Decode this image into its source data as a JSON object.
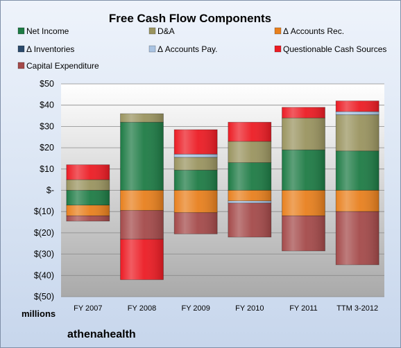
{
  "chart_data": {
    "type": "bar",
    "stacked": true,
    "title": "Free Cash Flow Components",
    "unit_label": "millions",
    "brand": "athenahealth",
    "categories": [
      "FY 2007",
      "FY 2008",
      "FY 2009",
      "FY 2010",
      "FY 2011",
      "TTM 3-2012"
    ],
    "ylim": [
      -50,
      50
    ],
    "yticks": [
      50,
      40,
      30,
      20,
      10,
      0,
      -10,
      -20,
      -30,
      -40,
      -50
    ],
    "ytick_labels": [
      "$50",
      "$40",
      "$30",
      "$20",
      "$10",
      "$-",
      "$(10)",
      "$(20)",
      "$(30)",
      "$(40)",
      "$(50)"
    ],
    "grid": true,
    "legend_position": "top",
    "series": [
      {
        "name": "Net Income",
        "color": "#1e7b45",
        "values": [
          -7,
          32,
          9.5,
          13,
          19,
          18.5
        ]
      },
      {
        "name": "D&A",
        "color": "#9a9460",
        "values": [
          5,
          4,
          6,
          10,
          15,
          17
        ]
      },
      {
        "name": "Δ Accounts Rec.",
        "color": "#e8801e",
        "values": [
          -5,
          -9.5,
          -10.5,
          -5,
          -12,
          -10
        ]
      },
      {
        "name": "Δ Inventories",
        "color": "#2b4a6b",
        "values": [
          0,
          0,
          0,
          0,
          0,
          0
        ]
      },
      {
        "name": "Δ Accounts Pay.",
        "color": "#a9c3e2",
        "values": [
          0,
          0,
          1.5,
          -1,
          0,
          1.5
        ]
      },
      {
        "name": "Questionable Cash Sources",
        "color": "#ec1c24",
        "values": [
          7,
          0,
          11.5,
          9,
          5,
          5
        ]
      },
      {
        "name": "Capital Expenditure",
        "color": "#a44a4a",
        "values": [
          -2.5,
          -13.5,
          -10,
          -16,
          -16.5,
          -25
        ]
      }
    ],
    "negative_extra": [
      {
        "series": "Questionable Cash Sources",
        "values": [
          0,
          -19,
          0,
          0,
          0,
          0
        ]
      }
    ]
  }
}
